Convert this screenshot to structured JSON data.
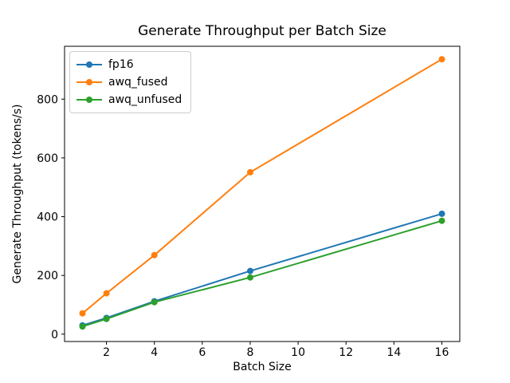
{
  "chart_data": {
    "type": "line",
    "title": "Generate Throughput per Batch Size",
    "xlabel": "Batch Size",
    "ylabel": "Generate Throughput (tokens/s)",
    "x": [
      1,
      2,
      4,
      8,
      16
    ],
    "series": [
      {
        "name": "fp16",
        "color": "#1f77b4",
        "values": [
          30,
          55,
          112,
          215,
          410
        ]
      },
      {
        "name": "awq_fused",
        "color": "#ff7f0e",
        "values": [
          71,
          139,
          269,
          551,
          936
        ]
      },
      {
        "name": "awq_unfused",
        "color": "#2ca02c",
        "values": [
          26,
          52,
          109,
          193,
          386
        ]
      }
    ],
    "xticks": [
      2,
      4,
      6,
      8,
      10,
      12,
      14,
      16
    ],
    "yticks": [
      0,
      200,
      400,
      600,
      800
    ],
    "xlim": [
      0.25,
      16.75
    ],
    "ylim": [
      -25,
      980
    ],
    "grid": false,
    "marker": "o",
    "legend_position": "upper left",
    "axis_color": "#000000",
    "background_color": "#ffffff"
  }
}
